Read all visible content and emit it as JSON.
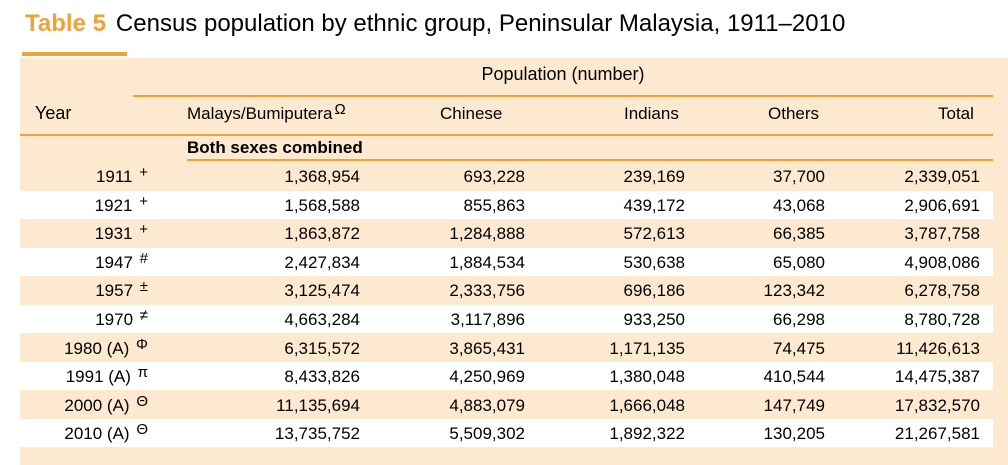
{
  "title": {
    "label": "Table 5",
    "text": "Census population by ethnic group, Peninsular Malaysia, 1911–2010"
  },
  "header": {
    "group_label": "Population (number)",
    "year_label": "Year",
    "columns": [
      "Malays/Bumiputera",
      "Chinese",
      "Indians",
      "Others",
      "Total"
    ],
    "malay_symbol": "Ω"
  },
  "section_label": "Both sexes combined",
  "colors": {
    "accent": "#f0a23a",
    "band": "#fde9cf"
  },
  "rows": [
    {
      "year": "1911",
      "sym": "+",
      "malays": "1,368,954",
      "chinese": "693,228",
      "indians": "239,169",
      "others": "37,700",
      "total": "2,339,051"
    },
    {
      "year": "1921",
      "sym": "+",
      "malays": "1,568,588",
      "chinese": "855,863",
      "indians": "439,172",
      "others": "43,068",
      "total": "2,906,691"
    },
    {
      "year": "1931",
      "sym": "+",
      "malays": "1,863,872",
      "chinese": "1,284,888",
      "indians": "572,613",
      "others": "66,385",
      "total": "3,787,758"
    },
    {
      "year": "1947",
      "sym": "#",
      "malays": "2,427,834",
      "chinese": "1,884,534",
      "indians": "530,638",
      "others": "65,080",
      "total": "4,908,086"
    },
    {
      "year": "1957",
      "sym": "±",
      "malays": "3,125,474",
      "chinese": "2,333,756",
      "indians": "696,186",
      "others": "123,342",
      "total": "6,278,758"
    },
    {
      "year": "1970",
      "sym": "≠",
      "malays": "4,663,284",
      "chinese": "3,117,896",
      "indians": "933,250",
      "others": "66,298",
      "total": "8,780,728"
    },
    {
      "year": "1980 (A)",
      "sym": "Φ",
      "malays": "6,315,572",
      "chinese": "3,865,431",
      "indians": "1,171,135",
      "others": "74,475",
      "total": "11,426,613"
    },
    {
      "year": "1991 (A)",
      "sym": "π",
      "malays": "8,433,826",
      "chinese": "4,250,969",
      "indians": "1,380,048",
      "others": "410,544",
      "total": "14,475,387"
    },
    {
      "year": "2000 (A)",
      "sym": "Θ",
      "malays": "11,135,694",
      "chinese": "4,883,079",
      "indians": "1,666,048",
      "others": "147,749",
      "total": "17,832,570"
    },
    {
      "year": "2010 (A)",
      "sym": "Θ",
      "malays": "13,735,752",
      "chinese": "5,509,302",
      "indians": "1,892,322",
      "others": "130,205",
      "total": "21,267,581"
    }
  ]
}
